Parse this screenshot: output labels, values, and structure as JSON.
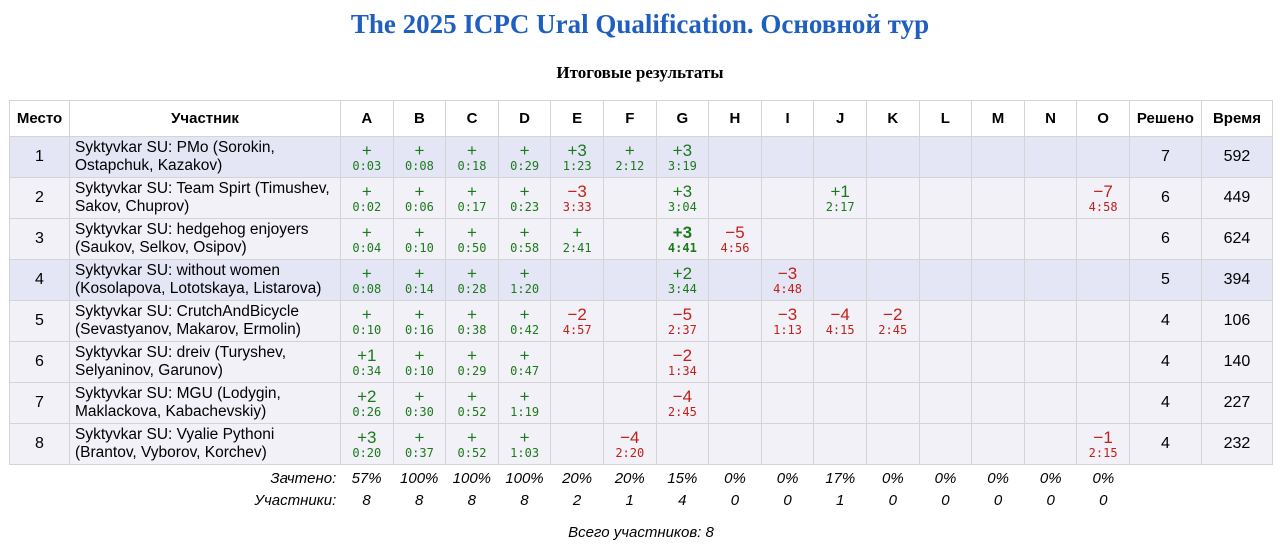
{
  "page": {
    "title": "The 2025 ICPC Ural Qualification. Основной тур",
    "subtitle": "Итоговые результаты",
    "total_participants": "Всего участников: 8"
  },
  "colors": {
    "title": "#1f5fbf",
    "solved": "#1c7a1c",
    "failed": "#c2201a",
    "highlight_row": "#e4e6f6",
    "normal_row": "#f1f1f7"
  },
  "columns": {
    "place": "Место",
    "team": "Участник",
    "problems": [
      "A",
      "B",
      "C",
      "D",
      "E",
      "F",
      "G",
      "H",
      "I",
      "J",
      "K",
      "L",
      "M",
      "N",
      "O"
    ],
    "solved": "Решено",
    "time": "Время"
  },
  "rows": [
    {
      "place": "1",
      "team_line1": "Syktyvkar SU: PMo (Sorokin,",
      "team_line2": "Ostapchuk, Kazakov)",
      "solved": "7",
      "time": "592",
      "cells": [
        {
          "v": "+",
          "t": "0:03",
          "s": "ok"
        },
        {
          "v": "+",
          "t": "0:08",
          "s": "ok"
        },
        {
          "v": "+",
          "t": "0:18",
          "s": "ok"
        },
        {
          "v": "+",
          "t": "0:29",
          "s": "ok"
        },
        {
          "v": "+3",
          "t": "1:23",
          "s": "ok"
        },
        {
          "v": "+",
          "t": "2:12",
          "s": "ok"
        },
        {
          "v": "+3",
          "t": "3:19",
          "s": "ok"
        },
        {
          "v": "",
          "t": "",
          "s": ""
        },
        {
          "v": "",
          "t": "",
          "s": ""
        },
        {
          "v": "",
          "t": "",
          "s": ""
        },
        {
          "v": "",
          "t": "",
          "s": ""
        },
        {
          "v": "",
          "t": "",
          "s": ""
        },
        {
          "v": "",
          "t": "",
          "s": ""
        },
        {
          "v": "",
          "t": "",
          "s": ""
        },
        {
          "v": "",
          "t": "",
          "s": ""
        }
      ]
    },
    {
      "place": "2",
      "team_line1": "Syktyvkar SU: Team Spirt (Timushev,",
      "team_line2": "Sakov, Chuprov)",
      "solved": "6",
      "time": "449",
      "cells": [
        {
          "v": "+",
          "t": "0:02",
          "s": "ok"
        },
        {
          "v": "+",
          "t": "0:06",
          "s": "ok"
        },
        {
          "v": "+",
          "t": "0:17",
          "s": "ok"
        },
        {
          "v": "+",
          "t": "0:23",
          "s": "ok"
        },
        {
          "v": "−3",
          "t": "3:33",
          "s": "bad"
        },
        {
          "v": "",
          "t": "",
          "s": ""
        },
        {
          "v": "+3",
          "t": "3:04",
          "s": "ok"
        },
        {
          "v": "",
          "t": "",
          "s": ""
        },
        {
          "v": "",
          "t": "",
          "s": ""
        },
        {
          "v": "+1",
          "t": "2:17",
          "s": "ok"
        },
        {
          "v": "",
          "t": "",
          "s": ""
        },
        {
          "v": "",
          "t": "",
          "s": ""
        },
        {
          "v": "",
          "t": "",
          "s": ""
        },
        {
          "v": "",
          "t": "",
          "s": ""
        },
        {
          "v": "−7",
          "t": "4:58",
          "s": "bad"
        }
      ]
    },
    {
      "place": "3",
      "team_line1": "Syktyvkar SU: hedgehog enjoyers",
      "team_line2": "(Saukov, Selkov, Osipov)",
      "solved": "6",
      "time": "624",
      "cells": [
        {
          "v": "+",
          "t": "0:04",
          "s": "ok"
        },
        {
          "v": "+",
          "t": "0:10",
          "s": "ok"
        },
        {
          "v": "+",
          "t": "0:50",
          "s": "ok"
        },
        {
          "v": "+",
          "t": "0:58",
          "s": "ok"
        },
        {
          "v": "+",
          "t": "2:41",
          "s": "ok"
        },
        {
          "v": "",
          "t": "",
          "s": ""
        },
        {
          "v": "+3",
          "t": "4:41",
          "s": "ok first"
        },
        {
          "v": "−5",
          "t": "4:56",
          "s": "bad"
        },
        {
          "v": "",
          "t": "",
          "s": ""
        },
        {
          "v": "",
          "t": "",
          "s": ""
        },
        {
          "v": "",
          "t": "",
          "s": ""
        },
        {
          "v": "",
          "t": "",
          "s": ""
        },
        {
          "v": "",
          "t": "",
          "s": ""
        },
        {
          "v": "",
          "t": "",
          "s": ""
        },
        {
          "v": "",
          "t": "",
          "s": ""
        }
      ]
    },
    {
      "place": "4",
      "team_line1": "Syktyvkar SU: without women",
      "team_line2": "(Kosolapova, Lototskaya, Listarova)",
      "solved": "5",
      "time": "394",
      "cells": [
        {
          "v": "+",
          "t": "0:08",
          "s": "ok"
        },
        {
          "v": "+",
          "t": "0:14",
          "s": "ok"
        },
        {
          "v": "+",
          "t": "0:28",
          "s": "ok"
        },
        {
          "v": "+",
          "t": "1:20",
          "s": "ok"
        },
        {
          "v": "",
          "t": "",
          "s": ""
        },
        {
          "v": "",
          "t": "",
          "s": ""
        },
        {
          "v": "+2",
          "t": "3:44",
          "s": "ok"
        },
        {
          "v": "",
          "t": "",
          "s": ""
        },
        {
          "v": "−3",
          "t": "4:48",
          "s": "bad"
        },
        {
          "v": "",
          "t": "",
          "s": ""
        },
        {
          "v": "",
          "t": "",
          "s": ""
        },
        {
          "v": "",
          "t": "",
          "s": ""
        },
        {
          "v": "",
          "t": "",
          "s": ""
        },
        {
          "v": "",
          "t": "",
          "s": ""
        },
        {
          "v": "",
          "t": "",
          "s": ""
        }
      ]
    },
    {
      "place": "5",
      "team_line1": "Syktyvkar SU: CrutchAndBicycle",
      "team_line2": "(Sevastyanov, Makarov, Ermolin)",
      "solved": "4",
      "time": "106",
      "cells": [
        {
          "v": "+",
          "t": "0:10",
          "s": "ok"
        },
        {
          "v": "+",
          "t": "0:16",
          "s": "ok"
        },
        {
          "v": "+",
          "t": "0:38",
          "s": "ok"
        },
        {
          "v": "+",
          "t": "0:42",
          "s": "ok"
        },
        {
          "v": "−2",
          "t": "4:57",
          "s": "bad"
        },
        {
          "v": "",
          "t": "",
          "s": ""
        },
        {
          "v": "−5",
          "t": "2:37",
          "s": "bad"
        },
        {
          "v": "",
          "t": "",
          "s": ""
        },
        {
          "v": "−3",
          "t": "1:13",
          "s": "bad"
        },
        {
          "v": "−4",
          "t": "4:15",
          "s": "bad"
        },
        {
          "v": "−2",
          "t": "2:45",
          "s": "bad"
        },
        {
          "v": "",
          "t": "",
          "s": ""
        },
        {
          "v": "",
          "t": "",
          "s": ""
        },
        {
          "v": "",
          "t": "",
          "s": ""
        },
        {
          "v": "",
          "t": "",
          "s": ""
        }
      ]
    },
    {
      "place": "6",
      "team_line1": "Syktyvkar SU: dreiv (Turyshev,",
      "team_line2": "Selyaninov, Garunov)",
      "solved": "4",
      "time": "140",
      "cells": [
        {
          "v": "+1",
          "t": "0:34",
          "s": "ok"
        },
        {
          "v": "+",
          "t": "0:10",
          "s": "ok"
        },
        {
          "v": "+",
          "t": "0:29",
          "s": "ok"
        },
        {
          "v": "+",
          "t": "0:47",
          "s": "ok"
        },
        {
          "v": "",
          "t": "",
          "s": ""
        },
        {
          "v": "",
          "t": "",
          "s": ""
        },
        {
          "v": "−2",
          "t": "1:34",
          "s": "bad"
        },
        {
          "v": "",
          "t": "",
          "s": ""
        },
        {
          "v": "",
          "t": "",
          "s": ""
        },
        {
          "v": "",
          "t": "",
          "s": ""
        },
        {
          "v": "",
          "t": "",
          "s": ""
        },
        {
          "v": "",
          "t": "",
          "s": ""
        },
        {
          "v": "",
          "t": "",
          "s": ""
        },
        {
          "v": "",
          "t": "",
          "s": ""
        },
        {
          "v": "",
          "t": "",
          "s": ""
        }
      ]
    },
    {
      "place": "7",
      "team_line1": "Syktyvkar SU: MGU (Lodygin,",
      "team_line2": "Maklackova, Kabachevskiy)",
      "solved": "4",
      "time": "227",
      "cells": [
        {
          "v": "+2",
          "t": "0:26",
          "s": "ok"
        },
        {
          "v": "+",
          "t": "0:30",
          "s": "ok"
        },
        {
          "v": "+",
          "t": "0:52",
          "s": "ok"
        },
        {
          "v": "+",
          "t": "1:19",
          "s": "ok"
        },
        {
          "v": "",
          "t": "",
          "s": ""
        },
        {
          "v": "",
          "t": "",
          "s": ""
        },
        {
          "v": "−4",
          "t": "2:45",
          "s": "bad"
        },
        {
          "v": "",
          "t": "",
          "s": ""
        },
        {
          "v": "",
          "t": "",
          "s": ""
        },
        {
          "v": "",
          "t": "",
          "s": ""
        },
        {
          "v": "",
          "t": "",
          "s": ""
        },
        {
          "v": "",
          "t": "",
          "s": ""
        },
        {
          "v": "",
          "t": "",
          "s": ""
        },
        {
          "v": "",
          "t": "",
          "s": ""
        },
        {
          "v": "",
          "t": "",
          "s": ""
        }
      ]
    },
    {
      "place": "8",
      "team_line1": "Syktyvkar SU: Vyalie Pythoni",
      "team_line2": "(Brantov, Vyborov, Korchev)",
      "solved": "4",
      "time": "232",
      "cells": [
        {
          "v": "+3",
          "t": "0:20",
          "s": "ok"
        },
        {
          "v": "+",
          "t": "0:37",
          "s": "ok"
        },
        {
          "v": "+",
          "t": "0:52",
          "s": "ok"
        },
        {
          "v": "+",
          "t": "1:03",
          "s": "ok"
        },
        {
          "v": "",
          "t": "",
          "s": ""
        },
        {
          "v": "−4",
          "t": "2:20",
          "s": "bad"
        },
        {
          "v": "",
          "t": "",
          "s": ""
        },
        {
          "v": "",
          "t": "",
          "s": ""
        },
        {
          "v": "",
          "t": "",
          "s": ""
        },
        {
          "v": "",
          "t": "",
          "s": ""
        },
        {
          "v": "",
          "t": "",
          "s": ""
        },
        {
          "v": "",
          "t": "",
          "s": ""
        },
        {
          "v": "",
          "t": "",
          "s": ""
        },
        {
          "v": "",
          "t": "",
          "s": ""
        },
        {
          "v": "−1",
          "t": "2:15",
          "s": "bad"
        }
      ]
    }
  ],
  "highlighted_rows": [
    1,
    4
  ],
  "footer": {
    "accepted_label": "Зачтено:",
    "accepted": [
      "57%",
      "100%",
      "100%",
      "100%",
      "20%",
      "20%",
      "15%",
      "0%",
      "0%",
      "17%",
      "0%",
      "0%",
      "0%",
      "0%",
      "0%"
    ],
    "participants_label": "Участники:",
    "participants": [
      "8",
      "8",
      "8",
      "8",
      "2",
      "1",
      "4",
      "0",
      "0",
      "1",
      "0",
      "0",
      "0",
      "0",
      "0"
    ]
  }
}
